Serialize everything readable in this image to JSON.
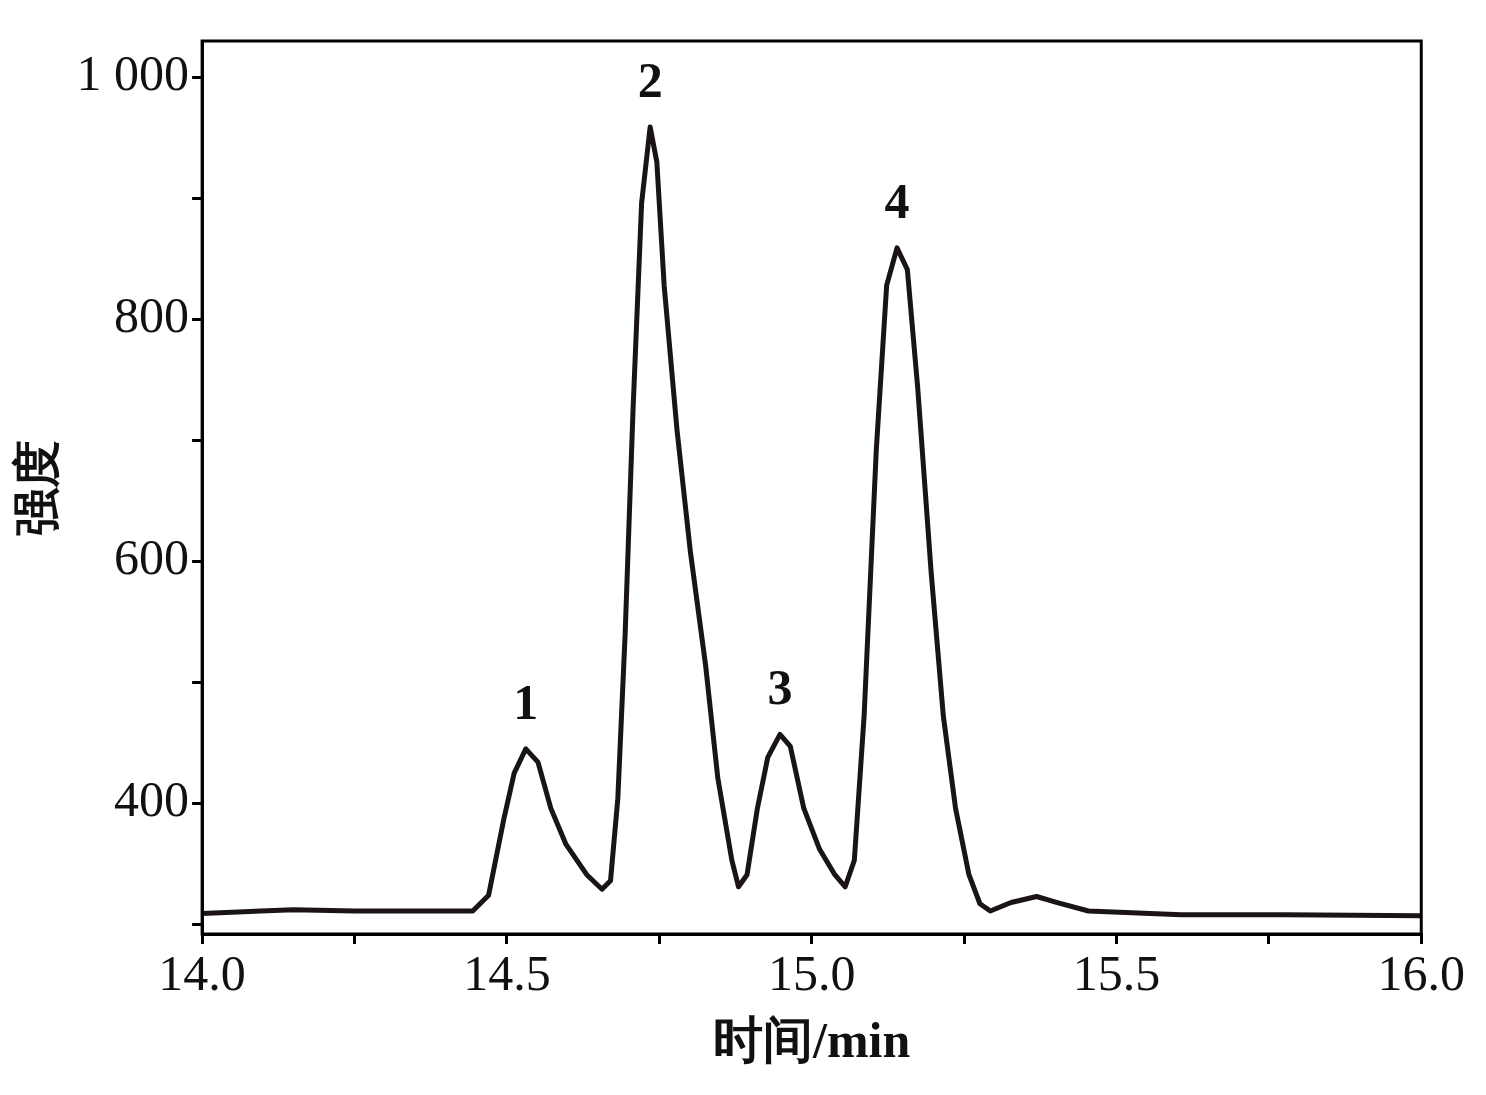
{
  "chart_data": {
    "type": "line",
    "xlabel": "时间/min",
    "ylabel": "强度",
    "x": [
      14.0,
      14.15,
      14.25,
      14.444,
      14.47,
      14.495,
      14.512,
      14.531,
      14.551,
      14.572,
      14.597,
      14.631,
      14.656,
      14.67,
      14.682,
      14.694,
      14.707,
      14.721,
      14.735,
      14.746,
      14.758,
      14.779,
      14.801,
      14.826,
      14.846,
      14.869,
      14.88,
      14.894,
      14.911,
      14.928,
      14.948,
      14.965,
      14.987,
      15.013,
      15.038,
      15.055,
      15.07,
      15.086,
      15.106,
      15.123,
      15.14,
      15.157,
      15.174,
      15.196,
      15.216,
      15.236,
      15.258,
      15.276,
      15.293,
      15.327,
      15.369,
      15.403,
      15.454,
      15.606,
      15.776,
      16.0
    ],
    "series": [
      {
        "color": "#1a1414",
        "values": [
          309,
          312,
          311,
          311,
          324,
          387,
          425,
          445,
          434,
          396,
          366,
          341,
          329,
          336,
          404,
          540,
          726,
          896,
          959,
          930,
          828,
          709,
          608,
          514,
          421,
          353,
          331,
          341,
          396,
          438,
          457,
          447,
          396,
          362,
          341,
          331,
          353,
          472,
          692,
          828,
          859,
          841,
          743,
          591,
          472,
          396,
          341,
          317,
          311,
          318,
          323,
          318,
          311,
          308,
          308,
          307
        ]
      }
    ],
    "xlim": [
      14.0,
      16.0
    ],
    "ylim": [
      292,
      1030
    ],
    "xticks": [
      {
        "value": 14.0,
        "label": "14.0"
      },
      {
        "value": 14.25,
        "label": null
      },
      {
        "value": 14.5,
        "label": "14.5"
      },
      {
        "value": 14.75,
        "label": null
      },
      {
        "value": 15.0,
        "label": "15.0"
      },
      {
        "value": 15.25,
        "label": null
      },
      {
        "value": 15.5,
        "label": "15.5"
      },
      {
        "value": 15.75,
        "label": null
      },
      {
        "value": 16.0,
        "label": "16.0"
      }
    ],
    "yticks": [
      {
        "value": 300,
        "label": null
      },
      400,
      {
        "value": 500,
        "label": null
      },
      600,
      {
        "value": 700,
        "label": null
      },
      800,
      {
        "value": 900,
        "label": null
      },
      {
        "value": 1000,
        "label": "1 000"
      }
    ],
    "annotations": [
      {
        "text": "1",
        "x": 14.531,
        "y": 445
      },
      {
        "text": "2",
        "x": 14.735,
        "y": 959
      },
      {
        "text": "3",
        "x": 14.948,
        "y": 457
      },
      {
        "text": "4",
        "x": 15.14,
        "y": 859
      }
    ],
    "grid": false,
    "legend": false,
    "marker": "none",
    "line_style": "solid"
  }
}
